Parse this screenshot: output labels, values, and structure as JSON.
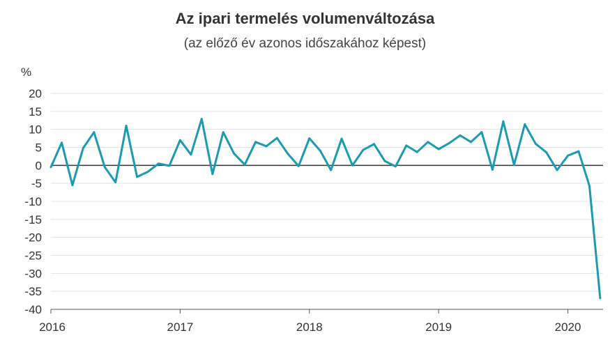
{
  "chart_data": {
    "type": "line",
    "title": "Az ipari termelés volumenváltozása",
    "subtitle": "(az előző év azonos időszakához képest)",
    "ylabel": "%",
    "xlabel": "",
    "ylim": [
      -40,
      20
    ],
    "yticks": [
      20,
      15,
      10,
      5,
      0,
      -5,
      -10,
      -15,
      -20,
      -25,
      -30,
      -35,
      -40
    ],
    "xticks": [
      "2016",
      "2017",
      "2018",
      "2019",
      "2020"
    ],
    "xlim": [
      "2016-01",
      "2020-04"
    ],
    "grid": true,
    "line_color": "#1a9bb0",
    "zero_line_color": "#333333",
    "series": [
      {
        "x": [
          "2016-01",
          "2016-02",
          "2016-03",
          "2016-04",
          "2016-05",
          "2016-06",
          "2016-07",
          "2016-08",
          "2016-09",
          "2016-10",
          "2016-11",
          "2016-12",
          "2017-01",
          "2017-02",
          "2017-03",
          "2017-04",
          "2017-05",
          "2017-06",
          "2017-07",
          "2017-08",
          "2017-09",
          "2017-10",
          "2017-11",
          "2017-12",
          "2018-01",
          "2018-02",
          "2018-03",
          "2018-04",
          "2018-05",
          "2018-06",
          "2018-07",
          "2018-08",
          "2018-09",
          "2018-10",
          "2018-11",
          "2018-12",
          "2019-01",
          "2019-02",
          "2019-03",
          "2019-04",
          "2019-05",
          "2019-06",
          "2019-07",
          "2019-08",
          "2019-09",
          "2019-10",
          "2019-11",
          "2019-12",
          "2020-01",
          "2020-02",
          "2020-03",
          "2020-04"
        ],
        "values": [
          -0.5,
          6.3,
          -5.5,
          4.8,
          9.2,
          -0.5,
          -4.7,
          11.0,
          -3.2,
          -1.8,
          0.5,
          -0.1,
          7.0,
          3.0,
          12.9,
          -2.4,
          9.2,
          3.3,
          0.2,
          6.5,
          5.3,
          7.6,
          3.2,
          -0.2,
          7.5,
          4.1,
          -1.3,
          7.4,
          0.0,
          4.3,
          5.9,
          1.2,
          -0.3,
          5.5,
          3.7,
          6.5,
          4.5,
          6.2,
          8.3,
          6.5,
          9.2,
          -1.2,
          12.2,
          0.1,
          11.4,
          6.0,
          3.6,
          -1.3,
          2.7,
          3.9,
          -5.7,
          -36.9
        ]
      }
    ]
  }
}
